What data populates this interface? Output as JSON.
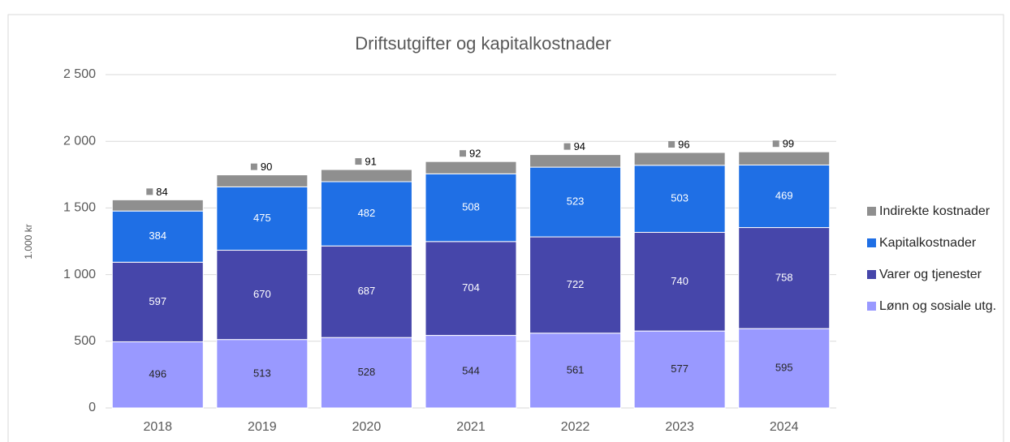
{
  "chart_data": {
    "type": "stacked_bar",
    "title": "Driftsutgifter og kapitalkostnader",
    "y_label": "1.000 kr",
    "categories": [
      "2018",
      "2019",
      "2020",
      "2021",
      "2022",
      "2023",
      "2024"
    ],
    "series": [
      {
        "name": "Lønn og sosiale utg.",
        "color": "#9999ff",
        "values": [
          496,
          513,
          528,
          544,
          561,
          577,
          595
        ]
      },
      {
        "name": "Varer og tjenester",
        "color": "#4646aa",
        "values": [
          597,
          670,
          687,
          704,
          722,
          740,
          758
        ]
      },
      {
        "name": "Kapitalkostnader",
        "color": "#1f6fe5",
        "values": [
          384,
          475,
          482,
          508,
          523,
          503,
          469
        ]
      },
      {
        "name": "Indirekte kostnader",
        "color": "#8f8f8f",
        "values": [
          84,
          90,
          91,
          92,
          94,
          96,
          99
        ]
      }
    ],
    "ylim": [
      0,
      2500
    ],
    "yticks": [
      0,
      500,
      {
        "value": 1000,
        "label": "1 000"
      },
      {
        "value": 1500,
        "label": "1 500"
      },
      {
        "value": 2000,
        "label": "2 000"
      },
      {
        "value": 2500,
        "label": "2 500"
      }
    ],
    "grid": true,
    "legend": "right"
  }
}
